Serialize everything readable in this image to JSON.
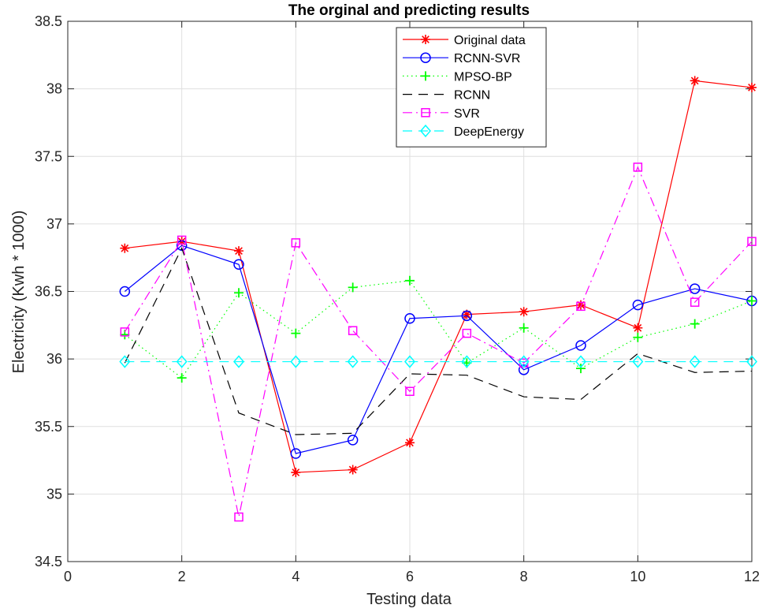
{
  "chart_data": {
    "type": "line",
    "title": "The orginal and predicting results",
    "xlabel": "Testing data",
    "ylabel": "Electricity (Kwh * 1000)",
    "xlim": [
      0,
      12
    ],
    "ylim": [
      34.5,
      38.5
    ],
    "xticks": [
      0,
      2,
      4,
      6,
      8,
      10,
      12
    ],
    "yticks": [
      34.5,
      35,
      35.5,
      36,
      36.5,
      37,
      37.5,
      38,
      38.5
    ],
    "xtick_labels": [
      "0",
      "2",
      "4",
      "6",
      "8",
      "10",
      "12"
    ],
    "ytick_labels": [
      "34.5",
      "35",
      "35.5",
      "36",
      "36.5",
      "37",
      "37.5",
      "38",
      "38.5"
    ],
    "grid": true,
    "legend_position": "top-right",
    "x": [
      1,
      2,
      3,
      4,
      5,
      6,
      7,
      8,
      9,
      10,
      11,
      12
    ],
    "series": [
      {
        "name": "Original data",
        "color": "#ff0000",
        "dash": "solid",
        "marker": "asterisk",
        "values": [
          36.82,
          36.87,
          36.8,
          35.16,
          35.18,
          35.38,
          36.33,
          36.35,
          36.4,
          36.23,
          38.06,
          38.01
        ]
      },
      {
        "name": "RCNN-SVR",
        "color": "#0000ff",
        "dash": "solid",
        "marker": "circle",
        "values": [
          36.5,
          36.84,
          36.7,
          35.3,
          35.4,
          36.3,
          36.32,
          35.92,
          36.1,
          36.4,
          36.52,
          36.43
        ]
      },
      {
        "name": "MPSO-BP",
        "color": "#00ff00",
        "dash": "dotted",
        "marker": "plus",
        "values": [
          36.18,
          35.86,
          36.49,
          36.19,
          36.53,
          36.58,
          35.97,
          36.23,
          35.93,
          36.16,
          36.26,
          36.43
        ]
      },
      {
        "name": "RCNN",
        "color": "#000000",
        "dash": "dashed",
        "marker": "none",
        "values": [
          35.97,
          36.82,
          35.6,
          35.44,
          35.45,
          35.89,
          35.88,
          35.72,
          35.7,
          36.04,
          35.9,
          35.91
        ]
      },
      {
        "name": "SVR",
        "color": "#ff00ff",
        "dash": "dashdot",
        "marker": "square",
        "values": [
          36.2,
          36.88,
          34.83,
          36.86,
          36.21,
          35.76,
          36.19,
          35.97,
          36.39,
          37.42,
          36.42,
          36.87
        ]
      },
      {
        "name": "DeepEnergy",
        "color": "#00ffff",
        "dash": "dashed",
        "marker": "diamond",
        "values": [
          35.98,
          35.98,
          35.98,
          35.98,
          35.98,
          35.98,
          35.98,
          35.98,
          35.98,
          35.98,
          35.98,
          35.98
        ]
      }
    ]
  }
}
